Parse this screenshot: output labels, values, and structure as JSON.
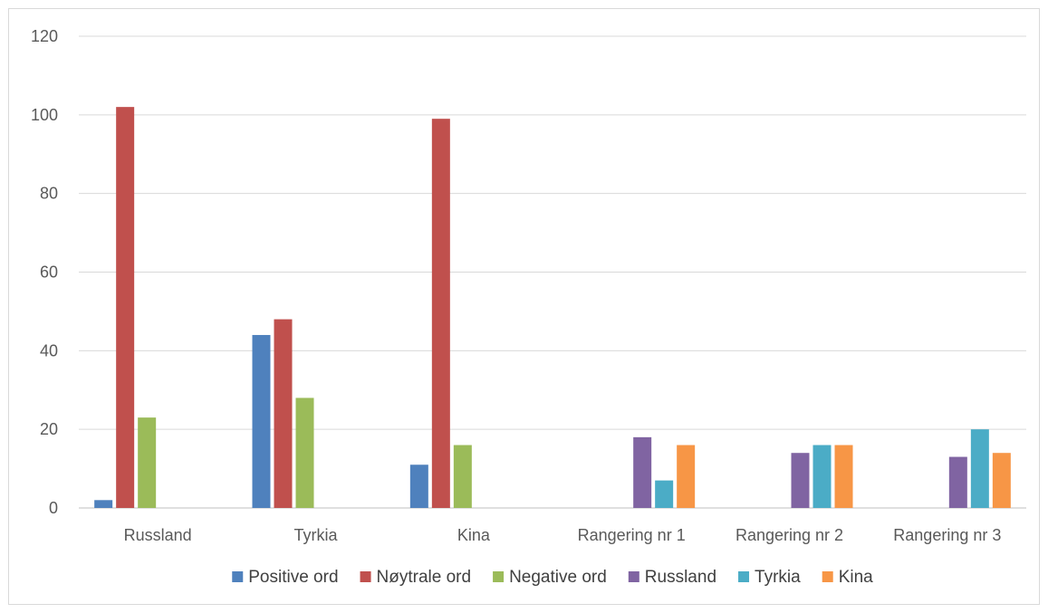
{
  "chart_data": {
    "type": "bar",
    "title": "",
    "xlabel": "",
    "ylabel": "",
    "ylim": [
      0,
      120
    ],
    "yticks": [
      0,
      20,
      40,
      60,
      80,
      100,
      120
    ],
    "grid": true,
    "legend_position": "bottom",
    "categories": [
      "Russland",
      "Tyrkia",
      "Kina",
      "Rangering nr 1",
      "Rangering nr 2",
      "Rangering nr 3"
    ],
    "series": [
      {
        "name": "Positive ord",
        "color": "#4f81bd",
        "values": [
          2,
          44,
          11,
          null,
          null,
          null
        ]
      },
      {
        "name": "Nøytrale ord",
        "color": "#c0504d",
        "values": [
          102,
          48,
          99,
          null,
          null,
          null
        ]
      },
      {
        "name": "Negative ord",
        "color": "#9bbb59",
        "values": [
          23,
          28,
          16,
          null,
          null,
          null
        ]
      },
      {
        "name": "Russland",
        "color": "#8064a2",
        "values": [
          null,
          null,
          null,
          18,
          14,
          13
        ]
      },
      {
        "name": "Tyrkia",
        "color": "#4bacc6",
        "values": [
          null,
          null,
          null,
          7,
          16,
          20
        ]
      },
      {
        "name": "Kina",
        "color": "#f79646",
        "values": [
          null,
          null,
          null,
          16,
          16,
          14
        ]
      }
    ]
  }
}
